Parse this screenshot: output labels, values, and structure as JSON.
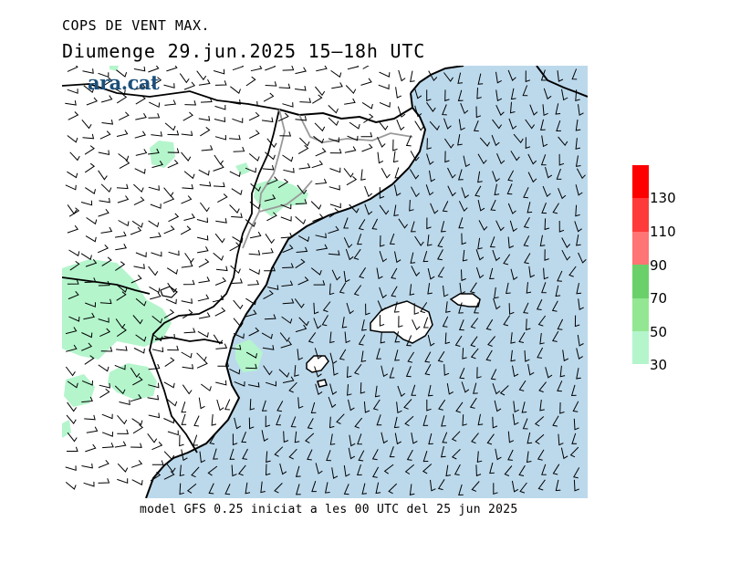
{
  "header": {
    "title": "COPS DE VENT MAX.",
    "subtitle": "Diumenge  29.jun.2025 15—18h UTC"
  },
  "logo": {
    "text": "ara.cat"
  },
  "footer": {
    "caption": "model GFS 0.25 iniciat a les 00 UTC del 25 jun 2025"
  },
  "legend": {
    "levels": [
      {
        "label": "130",
        "color": "#ff0000"
      },
      {
        "label": "110",
        "color": "#ff3a3a"
      },
      {
        "label": "90",
        "color": "#ff7474"
      },
      {
        "label": "70",
        "color": "#6ad16a"
      },
      {
        "label": "50",
        "color": "#93e793"
      },
      {
        "label": "30",
        "color": "#b4f5cc"
      }
    ]
  },
  "map": {
    "sea_color": "#bcd9ec",
    "land_color": "#ffffff",
    "gust_fill_color": "#b4f5cc"
  }
}
